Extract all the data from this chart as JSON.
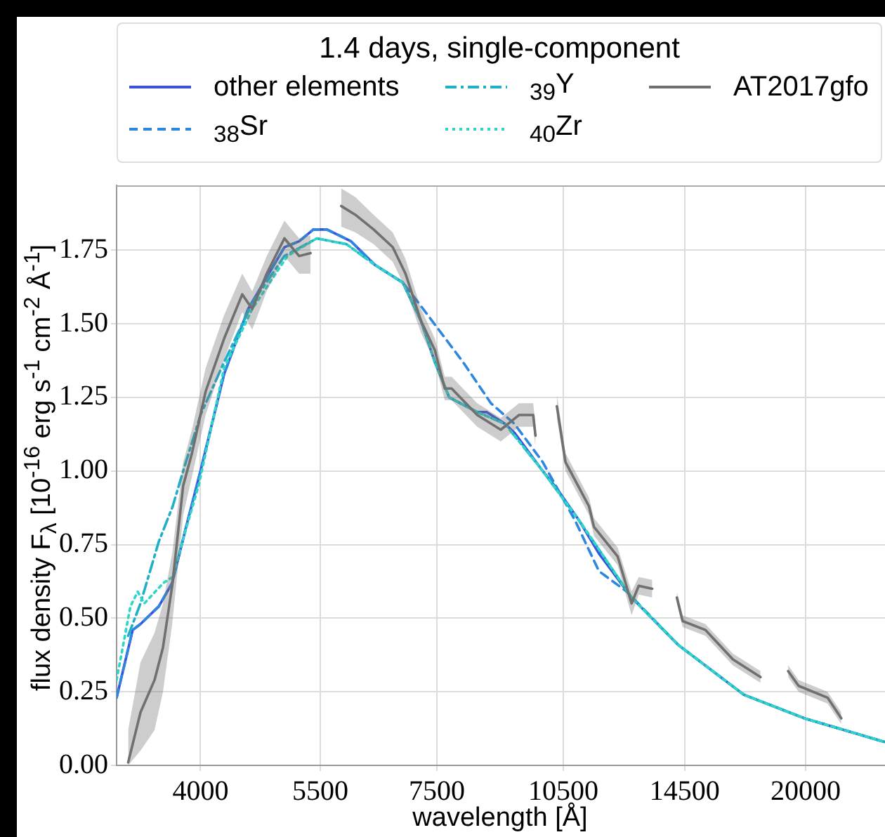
{
  "chart_data": {
    "type": "line",
    "legend_title": "1.4 days, single-component",
    "xlabel": "wavelength [Å]",
    "ylabel": "flux density F$_{λ}$ [10$^{-16}$ erg s$^{-1}$ cm$^{-2}$ Å$^{-1}$]",
    "log": "x",
    "grid": true,
    "legend": "top",
    "xlim": [
      3200,
      24700
    ],
    "xticks": [
      4000,
      5500,
      7500,
      10500,
      14500,
      20000
    ],
    "ylim": [
      0,
      1.97
    ],
    "yticks": [
      {
        "value": 0,
        "label": "0.00"
      },
      0.25,
      {
        "value": 0.5,
        "label": "0.50"
      },
      0.75,
      {
        "value": 1,
        "label": "1.00"
      },
      1.25,
      {
        "value": 1.5,
        "label": "1.50"
      },
      1.75
    ],
    "series": [
      {
        "name": "other elements",
        "color": "#3c50e0",
        "line_style": "solid",
        "x": [
          3200,
          3340,
          3410,
          3580,
          3710,
          3850,
          4000,
          4260,
          4540,
          5000,
          5200,
          5400,
          5600,
          5970,
          6360,
          6850,
          7190,
          7460,
          7750,
          8350,
          8560,
          8990,
          9220,
          9880,
          10320,
          10960,
          11540,
          12590,
          14240,
          16970,
          19930,
          24650
        ],
        "values": [
          0.23,
          0.46,
          0.48,
          0.54,
          0.62,
          0.81,
          1.0,
          1.33,
          1.55,
          1.76,
          1.78,
          1.82,
          1.82,
          1.78,
          1.7,
          1.64,
          1.51,
          1.37,
          1.25,
          1.2,
          1.2,
          1.16,
          1.13,
          1.01,
          0.94,
          0.83,
          0.72,
          0.57,
          0.41,
          0.24,
          0.16,
          0.08
        ]
      },
      {
        "name": "$_{38}$Sr",
        "color": "#2e86de",
        "line_style": "dashed",
        "x": [
          3200,
          3340,
          3410,
          3580,
          3710,
          3850,
          4000,
          4260,
          4540,
          5000,
          5200,
          5400,
          5600,
          5970,
          6360,
          6850,
          7190,
          8040,
          8660,
          9220,
          9940,
          10840,
          11540,
          12430,
          14240,
          16970,
          19930,
          24650
        ],
        "values": [
          0.23,
          0.46,
          0.48,
          0.54,
          0.62,
          0.81,
          1.0,
          1.33,
          1.55,
          1.76,
          1.78,
          1.82,
          1.82,
          1.78,
          1.7,
          1.64,
          1.56,
          1.37,
          1.23,
          1.16,
          1.03,
          0.83,
          0.66,
          0.59,
          0.41,
          0.24,
          0.16,
          0.08
        ]
      },
      {
        "name": "$_{39}$Y",
        "color": "#1fb0c8",
        "line_style": "dashdot",
        "x": [
          3300,
          3410,
          3580,
          3715,
          3820,
          4000,
          4260,
          4590,
          5000,
          5450,
          5900,
          6360,
          6850,
          7190,
          7460,
          7750,
          8350,
          8990,
          9880,
          10960,
          12590,
          14240,
          16970,
          19930,
          24650
        ],
        "values": [
          0.44,
          0.55,
          0.76,
          0.88,
          1.0,
          1.19,
          1.37,
          1.57,
          1.73,
          1.79,
          1.77,
          1.7,
          1.64,
          1.51,
          1.37,
          1.25,
          1.2,
          1.16,
          1.01,
          0.83,
          0.57,
          0.41,
          0.24,
          0.16,
          0.08
        ]
      },
      {
        "name": "$_{40}$Zr",
        "color": "#2fd6c8",
        "line_style": "dotted",
        "x": [
          3200,
          3320,
          3385,
          3445,
          3625,
          3715,
          3820,
          3980,
          4260,
          4590,
          5040,
          5450,
          5900,
          6360,
          6850,
          7190,
          7460,
          7750,
          8350,
          8990,
          9880,
          10960,
          12590,
          14240,
          16970,
          19930,
          24650
        ],
        "values": [
          0.29,
          0.54,
          0.59,
          0.55,
          0.62,
          0.64,
          0.77,
          0.95,
          1.35,
          1.55,
          1.73,
          1.79,
          1.77,
          1.7,
          1.64,
          1.51,
          1.37,
          1.25,
          1.2,
          1.16,
          1.01,
          0.83,
          0.57,
          0.41,
          0.24,
          0.16,
          0.08
        ]
      },
      {
        "name": "AT2017gfo",
        "color": "#707070",
        "line_style": "solid",
        "x": [
          3300,
          3410,
          3540,
          3620,
          3710,
          3820,
          3910,
          4055,
          4260,
          4470,
          4590,
          4770,
          5000,
          5200,
          5360,
          5550,
          5815,
          6040,
          6340,
          6670,
          6900,
          7190,
          7460,
          7660,
          7800,
          8350,
          8890,
          9330,
          9690,
          9750,
          10000,
          10320,
          10560,
          11240,
          11390,
          12130,
          12590,
          12830,
          13300,
          13700,
          14200,
          14420,
          15320,
          16480,
          17740,
          18400,
          19090,
          19630,
          21200,
          21990
        ],
        "values": [
          0.01,
          0.18,
          0.29,
          0.4,
          0.61,
          0.95,
          1.06,
          1.27,
          1.45,
          1.6,
          1.55,
          1.67,
          1.79,
          1.73,
          1.74,
          null,
          1.9,
          1.87,
          1.82,
          1.76,
          1.67,
          1.51,
          1.41,
          1.28,
          1.28,
          1.19,
          1.14,
          1.19,
          1.19,
          1.12,
          null,
          1.22,
          1.03,
          0.88,
          0.81,
          0.71,
          0.55,
          0.61,
          0.6,
          null,
          0.57,
          0.49,
          0.46,
          0.36,
          0.3,
          null,
          0.32,
          0.27,
          0.23,
          0.16
        ],
        "lower": [
          0,
          0.05,
          0.12,
          0.25,
          0.48,
          0.85,
          0.98,
          1.19,
          1.38,
          1.54,
          1.48,
          1.61,
          1.73,
          1.67,
          1.67,
          null,
          1.83,
          1.81,
          1.77,
          1.71,
          1.62,
          1.47,
          1.37,
          1.24,
          1.24,
          1.15,
          1.1,
          1.15,
          1.15,
          1.08,
          null,
          1.18,
          1.0,
          0.85,
          0.78,
          0.68,
          0.51,
          0.58,
          0.57,
          null,
          0.55,
          0.47,
          0.44,
          0.34,
          0.28,
          null,
          0.3,
          0.25,
          0.21,
          0.14
        ],
        "upper": [
          0.12,
          0.35,
          0.45,
          0.55,
          0.72,
          1.03,
          1.14,
          1.35,
          1.53,
          1.67,
          1.61,
          1.73,
          1.85,
          1.79,
          1.8,
          null,
          1.96,
          1.93,
          1.87,
          1.81,
          1.72,
          1.55,
          1.45,
          1.32,
          1.32,
          1.23,
          1.18,
          1.23,
          1.23,
          1.16,
          null,
          1.26,
          1.06,
          0.91,
          0.84,
          0.74,
          0.59,
          0.64,
          0.63,
          null,
          0.59,
          0.51,
          0.48,
          0.38,
          0.32,
          null,
          0.34,
          0.29,
          0.25,
          0.18
        ]
      }
    ]
  }
}
